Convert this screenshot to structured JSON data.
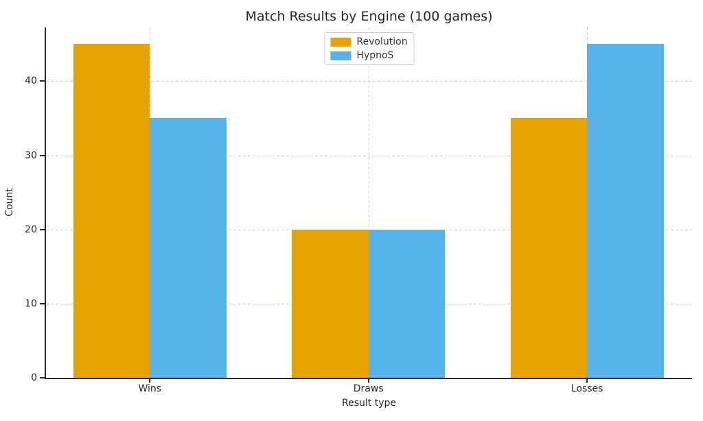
{
  "chart_data": {
    "type": "bar",
    "title": "Match Results by Engine (100 games)",
    "xlabel": "Result type",
    "ylabel": "Count",
    "categories": [
      "Wins",
      "Draws",
      "Losses"
    ],
    "series": [
      {
        "name": "Revolution",
        "color": "#E8A102",
        "values": [
          45,
          20,
          35
        ]
      },
      {
        "name": "HypnoS",
        "color": "#56B4E9",
        "values": [
          35,
          20,
          45
        ]
      }
    ],
    "bar_width": 0.35,
    "xlim": [
      -0.475,
      2.48
    ],
    "ylim": [
      0,
      47.25
    ],
    "yticks": [
      0,
      10,
      20,
      30,
      40
    ],
    "grid": true,
    "grid_style": "dashed",
    "grid_color": "#cccccc",
    "axis_color": "#262626",
    "legend_position": "upper center"
  }
}
